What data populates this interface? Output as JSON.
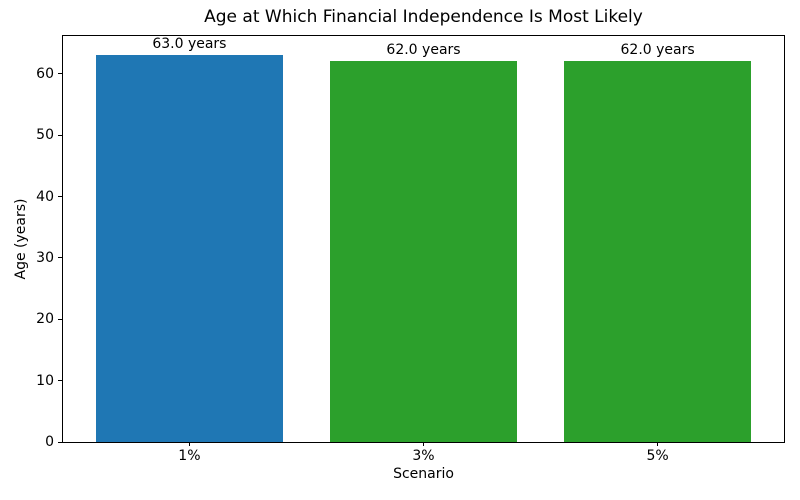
{
  "chart_data": {
    "type": "bar",
    "title": "Age at Which Financial Independence Is Most Likely",
    "xlabel": "Scenario",
    "ylabel": "Age (years)",
    "categories": [
      "1%",
      "3%",
      "5%"
    ],
    "values": [
      63.0,
      62.0,
      62.0
    ],
    "bar_labels": [
      "63.0 years",
      "62.0 years",
      "62.0 years"
    ],
    "bar_colors": [
      "#1f77b4",
      "#2ca02c",
      "#2ca02c"
    ],
    "ylim": [
      0,
      66.15
    ],
    "yticks": [
      0,
      10,
      20,
      30,
      40,
      50,
      60
    ],
    "bar_width_fraction": 0.8,
    "grid": false,
    "legend_position": "none",
    "background_color": "#ffffff",
    "spine_color": "#000000"
  }
}
